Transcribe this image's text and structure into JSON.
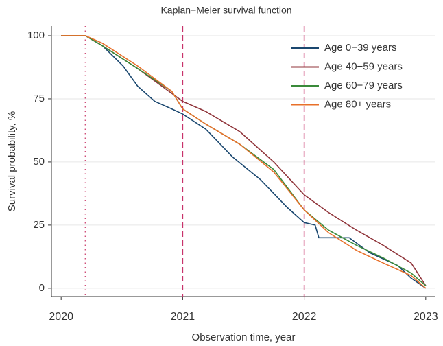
{
  "chart_data": {
    "type": "line",
    "step": false,
    "title": "Kaplan−Meier survival function",
    "x_label": "Observation time, year",
    "y_label": "Survival probability, %",
    "xlim": [
      2019.92,
      2023.08
    ],
    "xticks": [
      2020,
      2021,
      2022,
      2023
    ],
    "ylim": [
      -3.3,
      103.8
    ],
    "yticks": [
      0,
      25,
      50,
      75,
      100
    ],
    "grid": true,
    "legend": "top-right",
    "vlines": [
      {
        "x": 2020.2,
        "style": "dotted",
        "color": "#d0507a"
      },
      {
        "x": 2021,
        "style": "dashed",
        "color": "#c8336b"
      },
      {
        "x": 2022,
        "style": "dashed",
        "color": "#c8336b"
      }
    ],
    "series": [
      {
        "name": "Age 0−39 years",
        "color": "#1a476f",
        "x": [
          2020.0,
          2020.2,
          2020.34,
          2020.51,
          2020.63,
          2020.77,
          2020.91,
          2021.0,
          2021.19,
          2021.41,
          2021.64,
          2021.86,
          2022.0,
          2022.09,
          2022.12,
          2022.37,
          2022.54,
          2022.77,
          2022.88,
          2023.0
        ],
        "values": [
          100,
          100,
          96,
          88,
          80,
          74,
          71,
          69,
          63,
          52,
          43,
          32,
          26,
          25,
          20,
          20,
          14,
          9,
          4,
          0
        ]
      },
      {
        "name": "Age 40−59 years",
        "color": "#90353b",
        "x": [
          2020.0,
          2020.2,
          2020.34,
          2020.63,
          2021.0,
          2021.19,
          2021.47,
          2021.75,
          2022.0,
          2022.2,
          2022.43,
          2022.65,
          2022.88,
          2023.0
        ],
        "values": [
          100,
          100,
          96,
          87,
          74,
          70,
          62,
          50,
          37,
          30,
          23,
          17,
          10,
          1
        ]
      },
      {
        "name": "Age 60−79 years",
        "color": "#3a8a3a",
        "x": [
          2020.0,
          2020.2,
          2020.34,
          2020.63,
          2020.91,
          2021.0,
          2021.19,
          2021.47,
          2021.75,
          2022.0,
          2022.2,
          2022.43,
          2022.65,
          2022.88,
          2023.0
        ],
        "values": [
          100,
          100,
          96,
          87,
          78,
          71,
          65,
          57,
          47,
          31,
          23,
          17,
          12,
          6,
          1
        ]
      },
      {
        "name": "Age 80+ years",
        "color": "#e8702a",
        "x": [
          2020.0,
          2020.2,
          2020.34,
          2020.63,
          2020.91,
          2021.0,
          2021.19,
          2021.47,
          2021.75,
          2022.0,
          2022.2,
          2022.43,
          2022.65,
          2022.88,
          2023.0
        ],
        "values": [
          100,
          100,
          97,
          88,
          78,
          71,
          65,
          57,
          46,
          31,
          22,
          15,
          10,
          5,
          0
        ]
      }
    ]
  }
}
